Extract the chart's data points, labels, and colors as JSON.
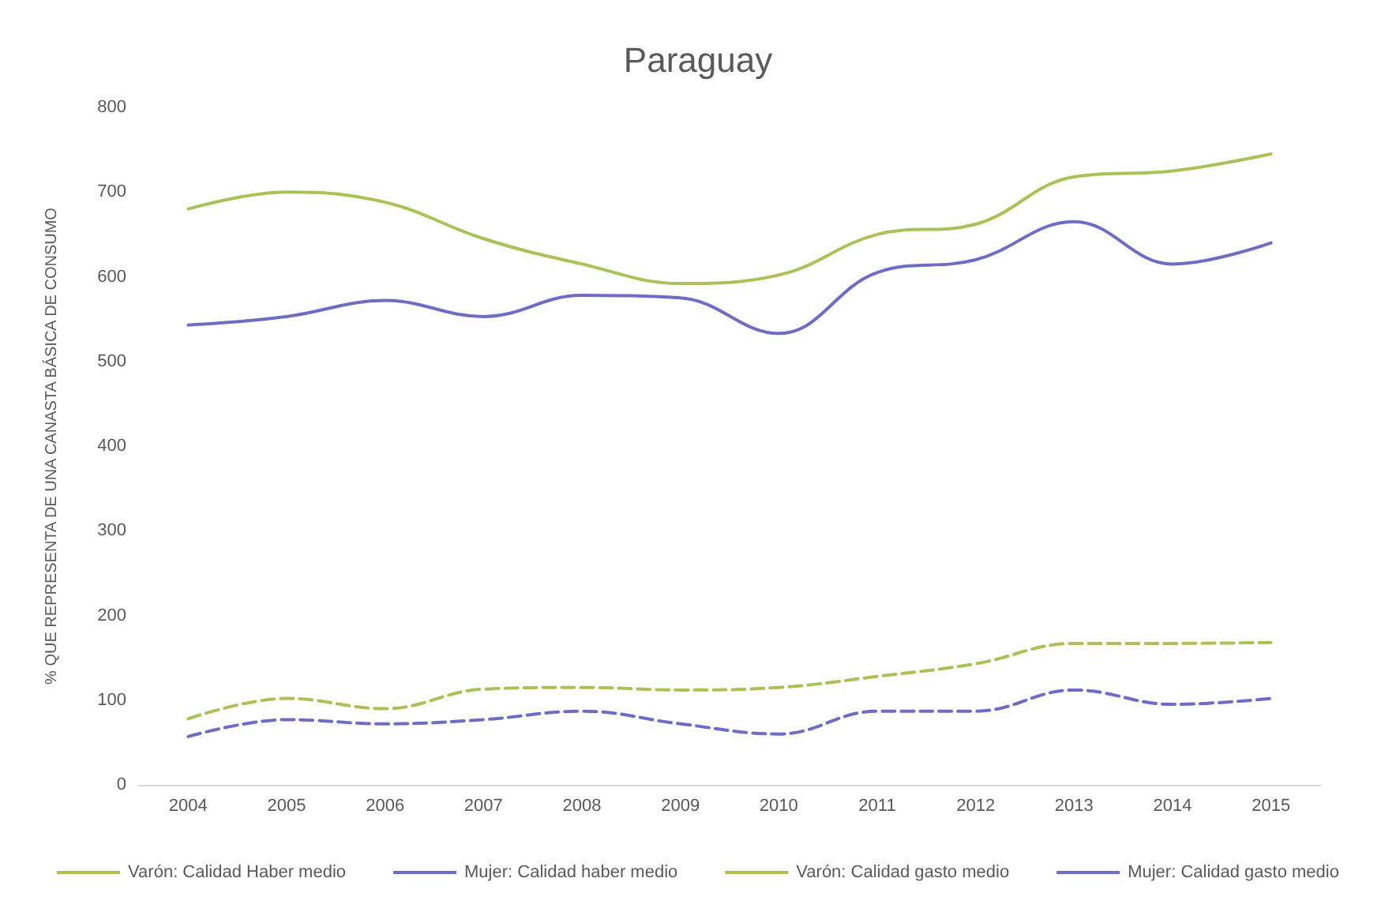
{
  "chart_data": {
    "type": "line",
    "title": "Paraguay",
    "ylabel": "% QUE REPRESENTA DE UNA CANASTA BÁSICA DE CONSUMO",
    "categories": [
      "2004",
      "2005",
      "2006",
      "2007",
      "2008",
      "2009",
      "2010",
      "2011",
      "2012",
      "2013",
      "2014",
      "2015"
    ],
    "series": [
      {
        "name": "Varón: Calidad Haber medio",
        "color": "#a8c256",
        "line_style": "solid",
        "values": [
          680,
          700,
          688,
          645,
          615,
          592,
          602,
          650,
          662,
          718,
          725,
          745
        ]
      },
      {
        "name": "Mujer: Calidad haber medio",
        "color": "#6e6cc4",
        "line_style": "solid",
        "values": [
          543,
          553,
          572,
          553,
          578,
          575,
          533,
          605,
          620,
          665,
          615,
          640
        ]
      },
      {
        "name": "Varón: Calidad gasto medio",
        "color": "#a8c256",
        "line_style": "dashed",
        "values": [
          78,
          102,
          90,
          113,
          115,
          112,
          115,
          128,
          143,
          167,
          167,
          168
        ]
      },
      {
        "name": "Mujer: Calidad gasto medio",
        "color": "#6e6cc4",
        "line_style": "dashed",
        "values": [
          57,
          77,
          72,
          77,
          87,
          72,
          60,
          87,
          87,
          112,
          95,
          102
        ]
      }
    ],
    "ylim": [
      0,
      800
    ],
    "yticks": [
      0,
      100,
      200,
      300,
      400,
      500,
      600,
      700,
      800
    ],
    "grid": false,
    "legend": "bottom",
    "marker": "none"
  }
}
